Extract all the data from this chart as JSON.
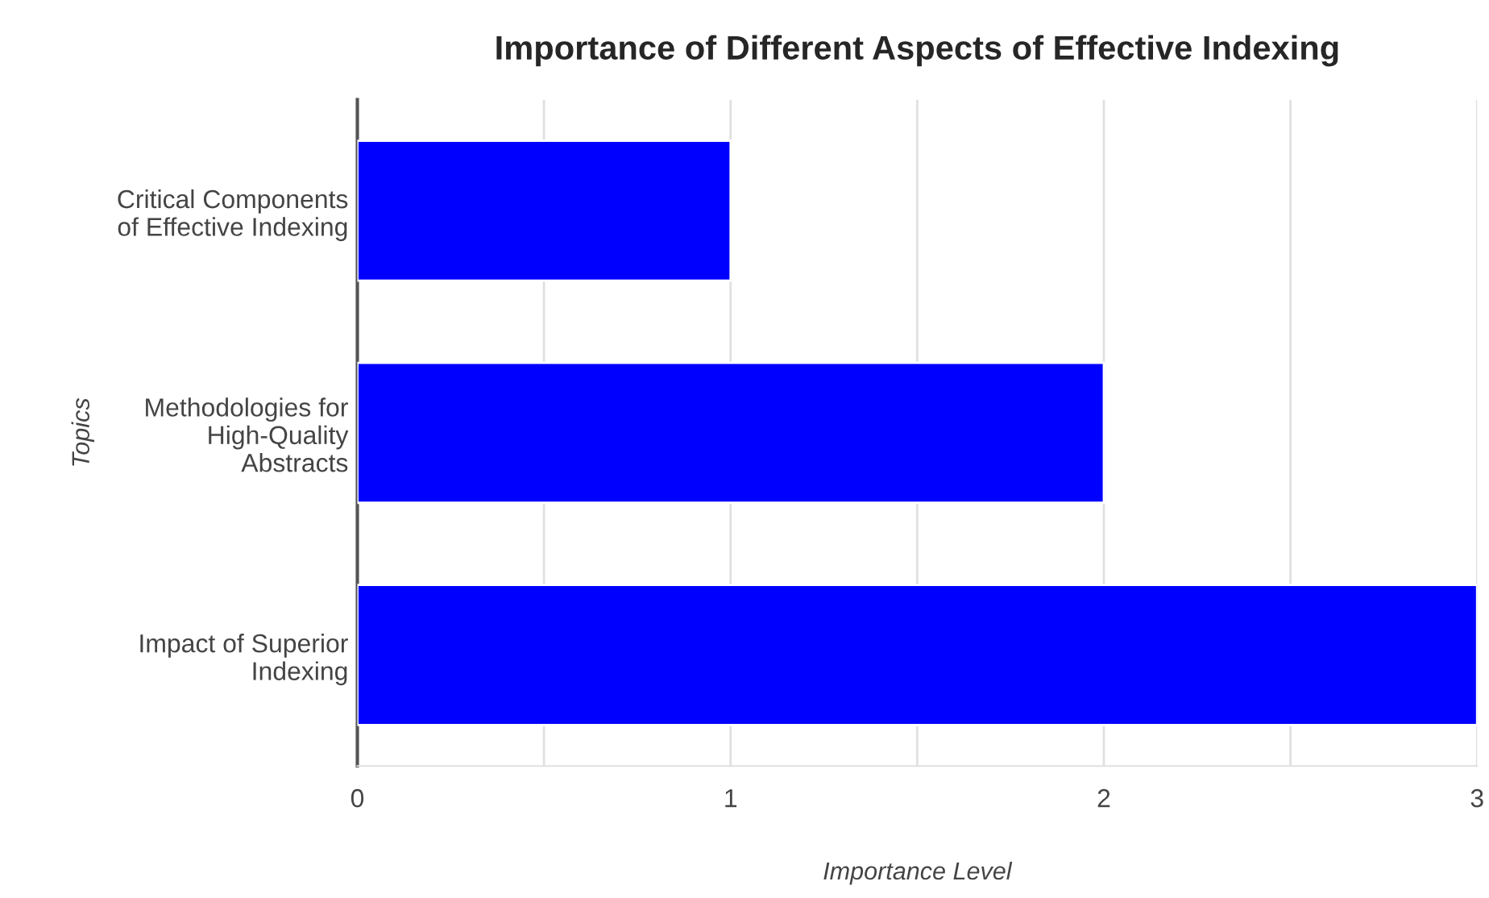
{
  "chart_data": {
    "type": "bar",
    "orientation": "horizontal",
    "title": "Importance of Different Aspects of Effective Indexing",
    "xlabel": "Importance Level",
    "ylabel": "Topics",
    "categories": [
      "Critical Components\nof Effective Indexing",
      "Methodologies for\nHigh-Quality\nAbstracts",
      "Impact of Superior\nIndexing"
    ],
    "values": [
      1,
      2,
      3
    ],
    "color": "#0000ff",
    "xlim": [
      0,
      3
    ],
    "xticks": [
      0,
      {
        "value": 0.5,
        "label": null
      },
      1,
      {
        "value": 1.5,
        "label": null
      },
      2,
      {
        "value": 2.5,
        "label": null
      },
      3
    ],
    "grid": "x"
  }
}
